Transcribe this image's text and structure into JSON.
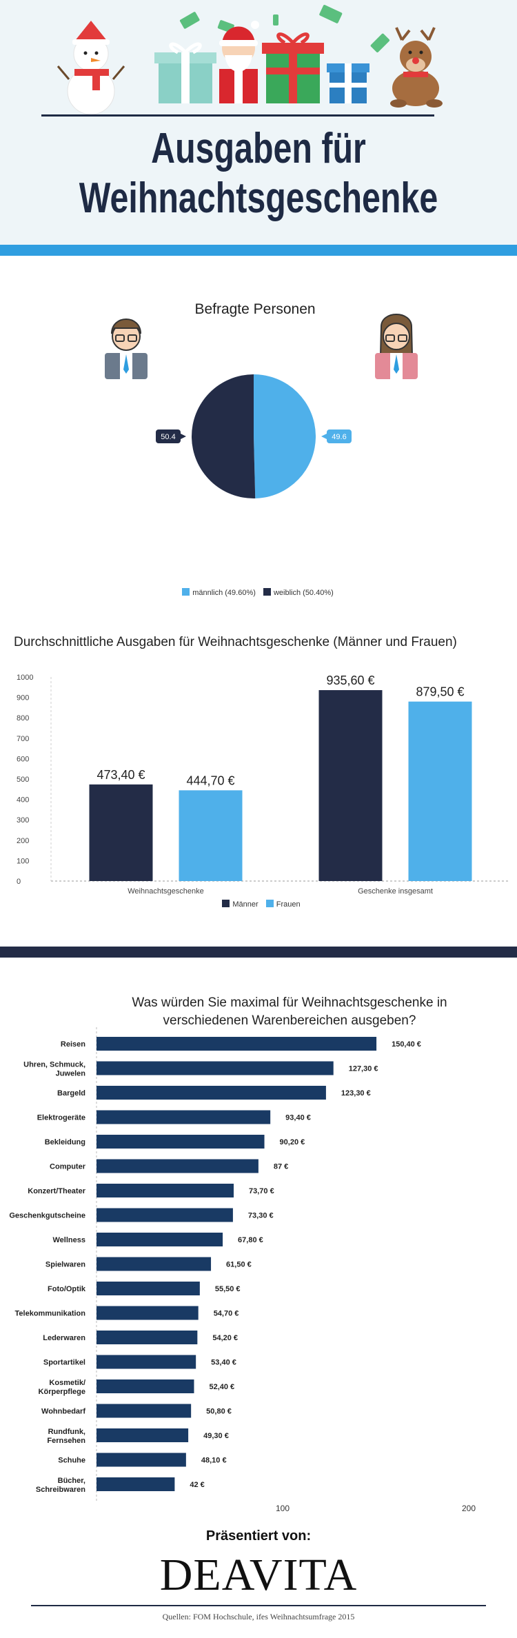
{
  "header": {
    "title_line1": "Ausgaben für",
    "title_line2": "Weihnachtsgeschenke"
  },
  "colors": {
    "navy": "#232c47",
    "blue": "#4fb0ea",
    "stripe_blue": "#2f9ee0",
    "bar_navy": "#193a64"
  },
  "chart_data": [
    {
      "type": "pie",
      "title": "Befragte Personen",
      "slices": [
        {
          "label": "männlich (49.60%)",
          "value": 49.6,
          "data_label": "49.6",
          "color": "#4fb0ea"
        },
        {
          "label": "weiblich (50.40%)",
          "value": 50.4,
          "data_label": "50.4",
          "color": "#232c47"
        }
      ]
    },
    {
      "type": "bar",
      "title": "Durchschnittliche Ausgaben für Weihnachtsgeschenke (Männer und Frauen)",
      "categories": [
        "Weihnachtsgeschenke",
        "Geschenke insgesamt"
      ],
      "ylim": [
        0,
        1000
      ],
      "yticks": [
        0,
        100,
        200,
        300,
        400,
        500,
        600,
        700,
        800,
        900,
        1000
      ],
      "series": [
        {
          "name": "Männer",
          "color": "#232c47",
          "values": [
            473.4,
            935.6
          ],
          "labels": [
            "473,40 €",
            "935,60 €"
          ]
        },
        {
          "name": "Frauen",
          "color": "#4fb0ea",
          "values": [
            444.7,
            879.5
          ],
          "labels": [
            "444,70 €",
            "879,50 €"
          ]
        }
      ]
    },
    {
      "type": "bar",
      "orientation": "horizontal",
      "title": "Was würden Sie maximal für Weihnachtsgeschenke in verschiedenen Warenbereichen ausgeben?",
      "xlim": [
        0,
        200
      ],
      "xticks": [
        100,
        200
      ],
      "items": [
        {
          "label": "Reisen",
          "value": 150.4,
          "value_label": "150,40 €"
        },
        {
          "label": "Uhren, Schmuck, Juwelen",
          "value": 127.3,
          "value_label": "127,30 €"
        },
        {
          "label": "Bargeld",
          "value": 123.3,
          "value_label": "123,30 €"
        },
        {
          "label": "Elektrogeräte",
          "value": 93.4,
          "value_label": "93,40 €"
        },
        {
          "label": "Bekleidung",
          "value": 90.2,
          "value_label": "90,20 €"
        },
        {
          "label": "Computer",
          "value": 87,
          "value_label": "87 €"
        },
        {
          "label": "Konzert/Theater",
          "value": 73.7,
          "value_label": "73,70 €"
        },
        {
          "label": "Geschenkgutscheine",
          "value": 73.3,
          "value_label": "73,30 €"
        },
        {
          "label": "Wellness",
          "value": 67.8,
          "value_label": "67,80 €"
        },
        {
          "label": "Spielwaren",
          "value": 61.5,
          "value_label": "61,50 €"
        },
        {
          "label": "Foto/Optik",
          "value": 55.5,
          "value_label": "55,50 €"
        },
        {
          "label": "Telekommunikation",
          "value": 54.7,
          "value_label": "54,70 €"
        },
        {
          "label": "Lederwaren",
          "value": 54.2,
          "value_label": "54,20 €"
        },
        {
          "label": "Sportartikel",
          "value": 53.4,
          "value_label": "53,40 €"
        },
        {
          "label": "Kosmetik/ Körperpflege",
          "value": 52.4,
          "value_label": "52,40 €"
        },
        {
          "label": "Wohnbedarf",
          "value": 50.8,
          "value_label": "50,80 €"
        },
        {
          "label": "Rundfunk, Fernsehen",
          "value": 49.3,
          "value_label": "49,30 €"
        },
        {
          "label": "Schuhe",
          "value": 48.1,
          "value_label": "48,10 €"
        },
        {
          "label": "Bücher, Schreibwaren",
          "value": 42,
          "value_label": "42 €"
        }
      ]
    }
  ],
  "footer": {
    "presented_by": "Präsentiert von:",
    "brand": "DEAVITA",
    "sources": "Quellen: FOM Hochschule, ifes Weihnachtsumfrage 2015"
  }
}
